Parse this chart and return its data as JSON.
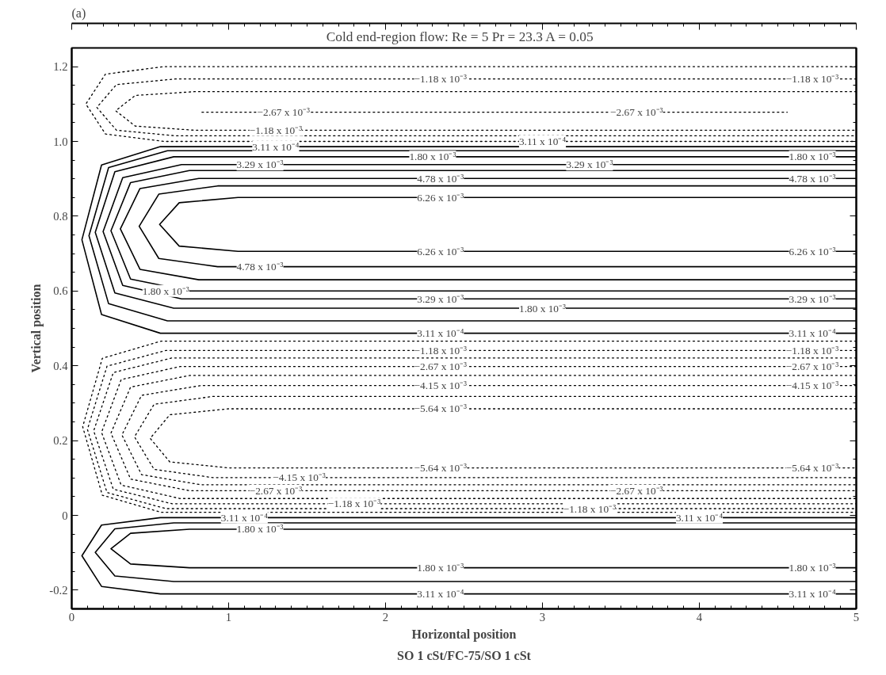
{
  "chart_data": {
    "type": "line",
    "title": "Cold end-region flow: Re = 5  Pr = 23.3  A = 0.05",
    "xlabel": "Horizontal position",
    "ylabel": "Vertical position",
    "xlim": [
      0,
      5
    ],
    "ylim": [
      -0.25,
      1.25
    ],
    "xticks": [
      0,
      1,
      2,
      3,
      4,
      5
    ],
    "yticks": [
      {
        "value": -0.2,
        "label": "-0.2"
      },
      0,
      {
        "value": 0.2,
        "label": "0.2"
      },
      {
        "value": 0.4,
        "label": "0.4"
      },
      {
        "value": 0.6,
        "label": "0.6"
      },
      {
        "value": 0.8,
        "label": "0.8"
      },
      {
        "value": 1,
        "label": "1.0"
      },
      {
        "value": 1.2,
        "label": "1.2"
      }
    ],
    "grid": false,
    "series": [
      {
        "color": "#000000",
        "line_style": "dotted",
        "x": [
          5,
          0.59,
          0.215,
          0.09,
          0.215,
          0.59,
          5
        ],
        "values": [
          1.2,
          1.2,
          1.18,
          1.1,
          1.02,
          1.0,
          1.0
        ]
      },
      {
        "color": "#000000",
        "line_style": "dotted",
        "x": [
          5,
          0.66,
          0.285,
          0.16,
          0.285,
          0.66,
          5
        ],
        "values": [
          1.167,
          1.167,
          1.152,
          1.091,
          1.03,
          1.015,
          1.015
        ]
      },
      {
        "color": "#000000",
        "line_style": "dotted",
        "x": [
          5,
          0.78,
          0.405,
          0.28,
          0.405,
          0.78,
          5
        ],
        "values": [
          1.133,
          1.133,
          1.123,
          1.082,
          1.041,
          1.03,
          1.03
        ]
      },
      {
        "color": "#000000",
        "line_style": "dotted",
        "x": [
          0.83,
          4.56
        ],
        "values": [
          1.078,
          1.078
        ]
      },
      {
        "color": "#000000",
        "line_style": "solid",
        "x": [
          5,
          1.06,
          0.685,
          0.56,
          0.685,
          1.06,
          5
        ],
        "values": [
          0.85,
          0.85,
          0.836,
          0.778,
          0.72,
          0.706,
          0.706
        ]
      },
      {
        "color": "#000000",
        "line_style": "solid",
        "x": [
          5,
          0.93,
          0.555,
          0.43,
          0.555,
          0.93,
          5
        ],
        "values": [
          0.881,
          0.881,
          0.859,
          0.773,
          0.687,
          0.665,
          0.665
        ]
      },
      {
        "color": "#000000",
        "line_style": "solid",
        "x": [
          5,
          0.81,
          0.435,
          0.31,
          0.435,
          0.81,
          5
        ],
        "values": [
          0.901,
          0.901,
          0.874,
          0.766,
          0.658,
          0.63,
          0.63
        ]
      },
      {
        "color": "#000000",
        "line_style": "solid",
        "x": [
          5,
          0.75,
          0.375,
          0.25,
          0.375,
          0.75,
          5
        ],
        "values": [
          0.922,
          0.922,
          0.89,
          0.761,
          0.632,
          0.6,
          0.6
        ]
      },
      {
        "color": "#000000",
        "line_style": "solid",
        "x": [
          5,
          0.7,
          0.325,
          0.2,
          0.325,
          0.7,
          5
        ],
        "values": [
          0.938,
          0.938,
          0.903,
          0.759,
          0.615,
          0.579,
          0.579
        ]
      },
      {
        "color": "#000000",
        "line_style": "solid",
        "x": [
          5,
          0.65,
          0.275,
          0.15,
          0.275,
          0.65,
          5
        ],
        "values": [
          0.959,
          0.959,
          0.919,
          0.757,
          0.595,
          0.554,
          0.554
        ]
      },
      {
        "color": "#000000",
        "line_style": "solid",
        "x": [
          5,
          0.61,
          0.235,
          0.11,
          0.235,
          0.61,
          5
        ],
        "values": [
          0.975,
          0.975,
          0.93,
          0.748,
          0.566,
          0.52,
          0.52
        ]
      },
      {
        "color": "#000000",
        "line_style": "solid",
        "x": [
          5,
          0.565,
          0.19,
          0.065,
          0.19,
          0.565,
          5
        ],
        "values": [
          0.986,
          0.986,
          0.937,
          0.737,
          0.537,
          0.487,
          0.487
        ]
      },
      {
        "color": "#000000",
        "line_style": "dotted",
        "x": [
          5,
          1.0,
          0.625,
          0.5,
          0.625,
          1.0,
          5
        ],
        "values": [
          0.285,
          0.285,
          0.269,
          0.206,
          0.143,
          0.127,
          0.127
        ]
      },
      {
        "color": "#000000",
        "line_style": "dotted",
        "x": [
          5,
          0.9,
          0.525,
          0.4,
          0.525,
          0.9,
          5
        ],
        "values": [
          0.318,
          0.318,
          0.297,
          0.21,
          0.123,
          0.101,
          0.101
        ]
      },
      {
        "color": "#000000",
        "line_style": "dotted",
        "x": [
          5,
          0.82,
          0.445,
          0.32,
          0.445,
          0.82,
          5
        ],
        "values": [
          0.347,
          0.347,
          0.321,
          0.215,
          0.109,
          0.082,
          0.082
        ]
      },
      {
        "color": "#000000",
        "line_style": "dotted",
        "x": [
          5,
          0.75,
          0.375,
          0.25,
          0.375,
          0.75,
          5
        ],
        "values": [
          0.374,
          0.374,
          0.343,
          0.22,
          0.097,
          0.066,
          0.066
        ]
      },
      {
        "color": "#000000",
        "line_style": "dotted",
        "x": [
          5,
          0.69,
          0.315,
          0.19,
          0.315,
          0.69,
          5
        ],
        "values": [
          0.398,
          0.398,
          0.363,
          0.222,
          0.081,
          0.045,
          0.045
        ]
      },
      {
        "color": "#000000",
        "line_style": "dotted",
        "x": [
          5,
          0.64,
          0.265,
          0.14,
          0.265,
          0.64,
          5
        ],
        "values": [
          0.421,
          0.421,
          0.382,
          0.226,
          0.07,
          0.031,
          0.031
        ]
      },
      {
        "color": "#000000",
        "line_style": "dotted",
        "x": [
          5,
          0.6,
          0.225,
          0.1,
          0.225,
          0.6,
          5
        ],
        "values": [
          0.441,
          0.441,
          0.399,
          0.23,
          0.061,
          0.018,
          0.018
        ]
      },
      {
        "color": "#000000",
        "line_style": "dotted",
        "x": [
          5,
          0.57,
          0.195,
          0.07,
          0.195,
          0.57,
          5
        ],
        "values": [
          0.466,
          0.466,
          0.42,
          0.237,
          0.054,
          0.008,
          0.008
        ]
      },
      {
        "color": "#000000",
        "line_style": "solid",
        "x": [
          5,
          0.75,
          0.375,
          0.25,
          0.375,
          0.75,
          5
        ],
        "values": [
          -0.037,
          -0.037,
          -0.048,
          -0.089,
          -0.13,
          -0.14,
          -0.14
        ]
      },
      {
        "color": "#000000",
        "line_style": "solid",
        "x": [
          5,
          0.65,
          0.275,
          0.15,
          0.275,
          0.65,
          5
        ],
        "values": [
          -0.02,
          -0.02,
          -0.036,
          -0.099,
          -0.162,
          -0.177,
          -0.177
        ]
      },
      {
        "color": "#000000",
        "line_style": "solid",
        "x": [
          5,
          0.565,
          0.19,
          0.065,
          0.19,
          0.565,
          5
        ],
        "values": [
          -0.006,
          -0.006,
          -0.026,
          -0.108,
          -0.19,
          -0.21,
          -0.21
        ]
      }
    ],
    "annotations": [
      "(a)",
      "SO 1 cSt/FC-75/SO 1 cSt",
      {
        "text": "−1.18 x 10⁻³",
        "x": 2.35,
        "y": 1.167
      },
      {
        "text": "−1.18 x 10⁻³",
        "x": 4.72,
        "y": 1.167
      },
      {
        "text": "−2.67 x 10⁻³",
        "x": 1.35,
        "y": 1.078
      },
      {
        "text": "−2.67 x 10⁻³",
        "x": 3.6,
        "y": 1.078
      },
      {
        "text": "−1.18 x 10⁻³",
        "x": 1.3,
        "y": 1.03
      },
      {
        "text": "3.11 x 10⁻⁴",
        "x": 3.0,
        "y": 1.0
      },
      {
        "text": "1.80 x 10⁻³",
        "x": 2.3,
        "y": 0.959
      },
      {
        "text": "1.80 x 10⁻³",
        "x": 4.72,
        "y": 0.959
      },
      {
        "text": "3.29 x 10⁻³",
        "x": 1.2,
        "y": 0.938
      },
      {
        "text": "3.29 x 10⁻³",
        "x": 3.3,
        "y": 0.938
      },
      {
        "text": "4.78 x 10⁻³",
        "x": 2.35,
        "y": 0.901
      },
      {
        "text": "4.78 x 10⁻³",
        "x": 4.72,
        "y": 0.901
      },
      {
        "text": "6.26 x 10⁻³",
        "x": 2.35,
        "y": 0.85
      },
      {
        "text": "6.26 x 10⁻³",
        "x": 2.35,
        "y": 0.706
      },
      {
        "text": "6.26 x 10⁻³",
        "x": 4.72,
        "y": 0.706
      },
      {
        "text": "4.78 x 10⁻³",
        "x": 1.2,
        "y": 0.665
      },
      {
        "text": "1.80 x 10⁻³",
        "x": 0.6,
        "y": 0.6
      },
      {
        "text": "3.29 x 10⁻³",
        "x": 2.35,
        "y": 0.579
      },
      {
        "text": "3.29 x 10⁻³",
        "x": 4.72,
        "y": 0.579
      },
      {
        "text": "1.80 x 10⁻³",
        "x": 3.0,
        "y": 0.554
      },
      {
        "text": "3.11 x 10⁻⁴",
        "x": 2.35,
        "y": 0.487
      },
      {
        "text": "3.11 x 10⁻⁴",
        "x": 4.72,
        "y": 0.487
      },
      {
        "text": "3.11 x 10⁻⁴",
        "x": 1.3,
        "y": 0.986
      },
      {
        "text": "−1.18 x 10⁻³",
        "x": 2.35,
        "y": 0.441
      },
      {
        "text": "−1.18 x 10⁻³",
        "x": 4.72,
        "y": 0.441
      },
      {
        "text": "−2.67 x 10⁻³",
        "x": 2.35,
        "y": 0.398
      },
      {
        "text": "−2.67 x 10⁻³",
        "x": 4.72,
        "y": 0.398
      },
      {
        "text": "−4.15 x 10⁻³",
        "x": 2.35,
        "y": 0.347
      },
      {
        "text": "−4.15 x 10⁻³",
        "x": 4.72,
        "y": 0.347
      },
      {
        "text": "−5.64 x 10⁻³",
        "x": 2.35,
        "y": 0.285
      },
      {
        "text": "−5.64 x 10⁻³",
        "x": 2.35,
        "y": 0.127
      },
      {
        "text": "−5.64 x 10⁻³",
        "x": 4.72,
        "y": 0.127
      },
      {
        "text": "−4.15 x 10⁻³",
        "x": 1.45,
        "y": 0.101
      },
      {
        "text": "−2.67 x 10⁻³",
        "x": 1.3,
        "y": 0.066
      },
      {
        "text": "−2.67 x 10⁻³",
        "x": 3.6,
        "y": 0.066
      },
      {
        "text": "−1.18 x 10⁻³",
        "x": 1.8,
        "y": 0.031
      },
      {
        "text": "−1.18 x 10⁻³",
        "x": 3.3,
        "y": 0.018
      },
      {
        "text": "3.11 x 10⁻⁴",
        "x": 1.1,
        "y": -0.006
      },
      {
        "text": "3.11 x 10⁻⁴",
        "x": 4.0,
        "y": -0.006
      },
      {
        "text": "1.80 x 10⁻³",
        "x": 1.2,
        "y": -0.037
      },
      {
        "text": "1.80 x 10⁻³",
        "x": 2.35,
        "y": -0.14
      },
      {
        "text": "1.80 x 10⁻³",
        "x": 4.72,
        "y": -0.14
      },
      {
        "text": "3.11 x 10⁻⁴",
        "x": 2.35,
        "y": -0.21
      },
      {
        "text": "3.11 x 10⁻⁴",
        "x": 4.72,
        "y": -0.21
      }
    ]
  }
}
